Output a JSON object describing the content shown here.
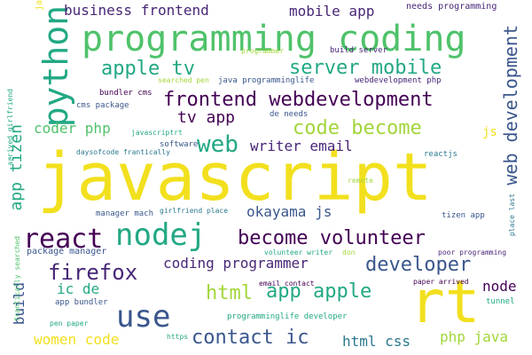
{
  "colors": {
    "background": "#ffffff",
    "yellow": "#f2e01e",
    "lime": "#a3d63a",
    "green": "#4fc26a",
    "teal": "#22a884",
    "cyan": "#1f968b",
    "blue": "#2a788e",
    "indigo": "#39568c",
    "purple": "#482677",
    "dark": "#440154"
  },
  "words": [
    {
      "text": "javascript",
      "color": "yellow",
      "size": 74
    },
    {
      "text": "rt",
      "color": "yellow",
      "size": 66
    },
    {
      "text": "programming coding",
      "color": "green",
      "size": 40
    },
    {
      "text": "python",
      "color": "teal",
      "size": 38
    },
    {
      "text": "nodej",
      "color": "teal",
      "size": 34
    },
    {
      "text": "use",
      "color": "indigo",
      "size": 34
    },
    {
      "text": "react",
      "color": "dark",
      "size": 30
    },
    {
      "text": "frontend webdevelopment",
      "color": "dark",
      "size": 22
    },
    {
      "text": "server mobile",
      "color": "teal",
      "size": 22
    },
    {
      "text": "apple tv",
      "color": "teal",
      "size": 22
    },
    {
      "text": "web",
      "color": "teal",
      "size": 26
    },
    {
      "text": "code become",
      "color": "lime",
      "size": 22
    },
    {
      "text": "become volunteer",
      "color": "dark",
      "size": 22
    },
    {
      "text": "web development",
      "color": "indigo",
      "size": 20
    },
    {
      "text": "firefox",
      "color": "purple",
      "size": 24
    },
    {
      "text": "developer",
      "color": "indigo",
      "size": 22
    },
    {
      "text": "contact ic",
      "color": "indigo",
      "size": 22
    },
    {
      "text": "html",
      "color": "lime",
      "size": 22
    },
    {
      "text": "app apple",
      "color": "teal",
      "size": 22
    },
    {
      "text": "app tizen",
      "color": "teal",
      "size": 18
    },
    {
      "text": "business frontend",
      "color": "purple",
      "size": 16
    },
    {
      "text": "mobile app",
      "color": "purple",
      "size": 16
    },
    {
      "text": "tv app",
      "color": "dark",
      "size": 18
    },
    {
      "text": "coder php",
      "color": "green",
      "size": 16
    },
    {
      "text": "writer email",
      "color": "purple",
      "size": 16
    },
    {
      "text": "okayama js",
      "color": "indigo",
      "size": 16
    },
    {
      "text": "coding programmer",
      "color": "purple",
      "size": 16
    },
    {
      "text": "ic de",
      "color": "teal",
      "size": 16
    },
    {
      "text": "build",
      "color": "indigo",
      "size": 16
    },
    {
      "text": "node",
      "color": "dark",
      "size": 16
    },
    {
      "text": "women code",
      "color": "yellow",
      "size": 16
    },
    {
      "text": "html css",
      "color": "blue",
      "size": 16
    },
    {
      "text": "php java",
      "color": "lime",
      "size": 16
    },
    {
      "text": "js",
      "color": "yellow",
      "size": 14
    },
    {
      "text": "needs programming",
      "color": "purple",
      "size": 10
    },
    {
      "text": "build server",
      "color": "purple",
      "size": 9
    },
    {
      "text": "programmer",
      "color": "lime",
      "size": 8
    },
    {
      "text": "bundler cms",
      "color": "dark",
      "size": 9
    },
    {
      "text": "cms package",
      "color": "indigo",
      "size": 9
    },
    {
      "text": "de needs",
      "color": "indigo",
      "size": 9
    },
    {
      "text": "java programminglife",
      "color": "indigo",
      "size": 9
    },
    {
      "text": "webdevelopment php",
      "color": "purple",
      "size": 9
    },
    {
      "text": "searched pen",
      "color": "lime",
      "size": 8
    },
    {
      "text": "javascriptrt",
      "color": "teal",
      "size": 8
    },
    {
      "text": "software",
      "color": "indigo",
      "size": 9
    },
    {
      "text": "daysofcode frantically",
      "color": "blue",
      "size": 8
    },
    {
      "text": "reactjs",
      "color": "blue",
      "size": 9
    },
    {
      "text": "remote",
      "color": "lime",
      "size": 8
    },
    {
      "text": "manager mach",
      "color": "indigo",
      "size": 9
    },
    {
      "text": "girlfriend place",
      "color": "blue",
      "size": 8
    },
    {
      "text": "tizen app",
      "color": "indigo",
      "size": 9
    },
    {
      "text": "package manager",
      "color": "indigo",
      "size": 10
    },
    {
      "text": "volunteer writer",
      "color": "teal",
      "size": 8
    },
    {
      "text": "don",
      "color": "lime",
      "size": 8
    },
    {
      "text": "poor programming",
      "color": "purple",
      "size": 8
    },
    {
      "text": "email contact",
      "color": "dark",
      "size": 8
    },
    {
      "text": "paper arrived",
      "color": "dark",
      "size": 8
    },
    {
      "text": "app bundler",
      "color": "indigo",
      "size": 9
    },
    {
      "text": "pen paper",
      "color": "teal",
      "size": 8
    },
    {
      "text": "programminglife developer",
      "color": "teal",
      "size": 9
    },
    {
      "text": "tunnel",
      "color": "teal",
      "size": 9
    },
    {
      "text": "https",
      "color": "teal",
      "size": 8
    },
    {
      "text": "arrived girlfriend",
      "color": "teal",
      "size": 8
    },
    {
      "text": "frantically searched",
      "color": "green",
      "size": 8
    },
    {
      "text": "place last",
      "color": "blue",
      "size": 8
    },
    {
      "text": "ja",
      "color": "yellow",
      "size": 10
    }
  ]
}
